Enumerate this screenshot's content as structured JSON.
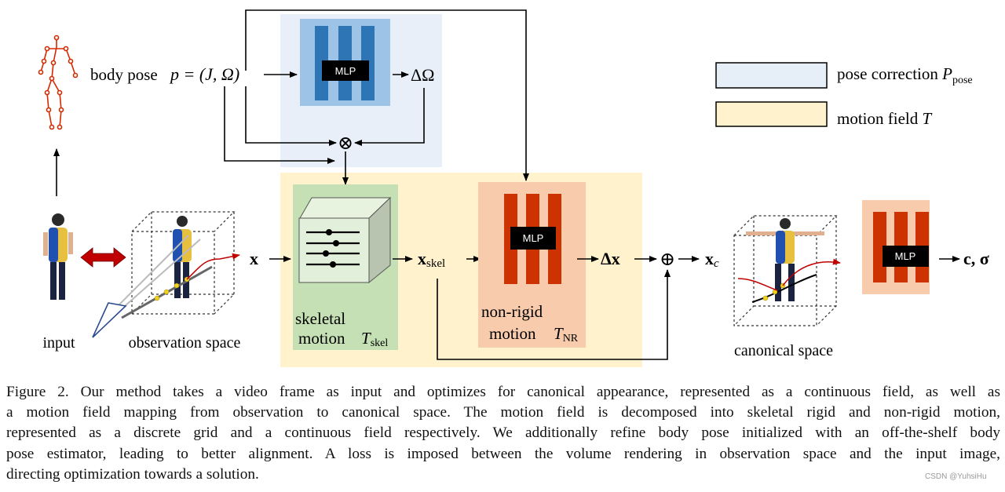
{
  "diagram": {
    "body_pose_label": "body pose",
    "body_pose_formula": "p = (J, Ω)",
    "delta_omega": "ΔΩ",
    "mlp_label": "MLP",
    "otimes": "⊗",
    "oplus": "⊕",
    "x": "x",
    "x_skel": "x",
    "x_skel_sub": "skel",
    "delta_x": "Δx",
    "x_c": "x",
    "x_c_sub": "c",
    "output": "c, σ",
    "input_label": "input",
    "observation_label": "observation space",
    "canonical_label": "canonical space",
    "skeletal_line1": "skeletal",
    "skeletal_line2": "motion",
    "T_skel": "T",
    "T_skel_sub": "skel",
    "nonrigid_line1": "non-rigid",
    "nonrigid_line2": "motion",
    "T_NR": "T",
    "T_NR_sub": "NR",
    "legend": [
      {
        "label": "pose correction",
        "symbol": "P",
        "symbol_sub": "pose",
        "color": "#e6eef8"
      },
      {
        "label": "motion field",
        "symbol": "T",
        "symbol_sub": "",
        "color": "#fff2cc"
      }
    ],
    "colors": {
      "pose_bg": "#e8eff9",
      "pose_box": "#9dc3e6",
      "pose_bars": "#2e75b6",
      "motion_bg": "#fff2cc",
      "skeletal_box": "#c5e0b4",
      "nonrigid_box": "#f8cbad",
      "nonrigid_bars": "#cc3300",
      "skeleton": "#d62a00"
    }
  },
  "caption": {
    "lines": [
      "Figure 2. Our method takes a video frame as input and optimizes for canonical appearance, represented as a continuous field, as well as",
      "a motion field mapping from observation to canonical space. The motion field is decomposed into skeletal rigid and non-rigid motion,",
      "represented as a discrete grid and a continuous field respectively. We additionally refine body pose initialized with an off-the-shelf body",
      "pose estimator, leading to better alignment. A loss is imposed between the volume rendering in observation space and the input image,",
      "directing optimization towards a solution."
    ]
  },
  "watermark": "CSDN @YuhsiHu"
}
